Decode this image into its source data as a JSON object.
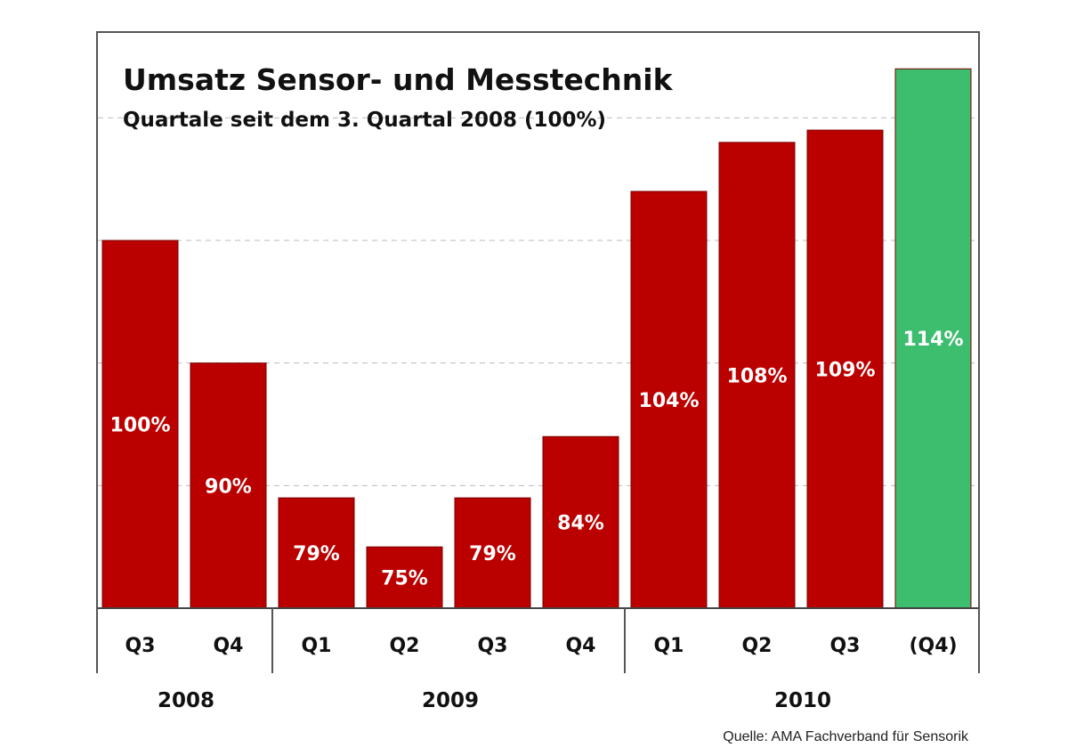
{
  "chart_data": {
    "type": "bar",
    "title": "Umsatz Sensor- und Messtechnik",
    "subtitle": "Quartale seit dem 3. Quartal 2008 (100%)",
    "categories": [
      "Q3",
      "Q4",
      "Q1",
      "Q2",
      "Q3",
      "Q4",
      "Q1",
      "Q2",
      "Q3",
      "(Q4)"
    ],
    "years": [
      {
        "label": "2008",
        "from": 0,
        "to": 1
      },
      {
        "label": "2009",
        "from": 2,
        "to": 5
      },
      {
        "label": "2010",
        "from": 6,
        "to": 9
      }
    ],
    "values": [
      100,
      90,
      79,
      75,
      79,
      84,
      104,
      108,
      109,
      114
    ],
    "data_labels": [
      "100%",
      "90%",
      "79%",
      "75%",
      "79%",
      "84%",
      "104%",
      "108%",
      "109%",
      "114%"
    ],
    "bar_colors": [
      "#bb0000",
      "#bb0000",
      "#bb0000",
      "#bb0000",
      "#bb0000",
      "#bb0000",
      "#bb0000",
      "#bb0000",
      "#bb0000",
      "#3dbd6e"
    ],
    "ylim": [
      70,
      117
    ],
    "gridlines": [
      80,
      90,
      100,
      110
    ],
    "grid": true,
    "grid_style": "dashed",
    "source": "Quelle: AMA Fachverband für Sensorik"
  }
}
